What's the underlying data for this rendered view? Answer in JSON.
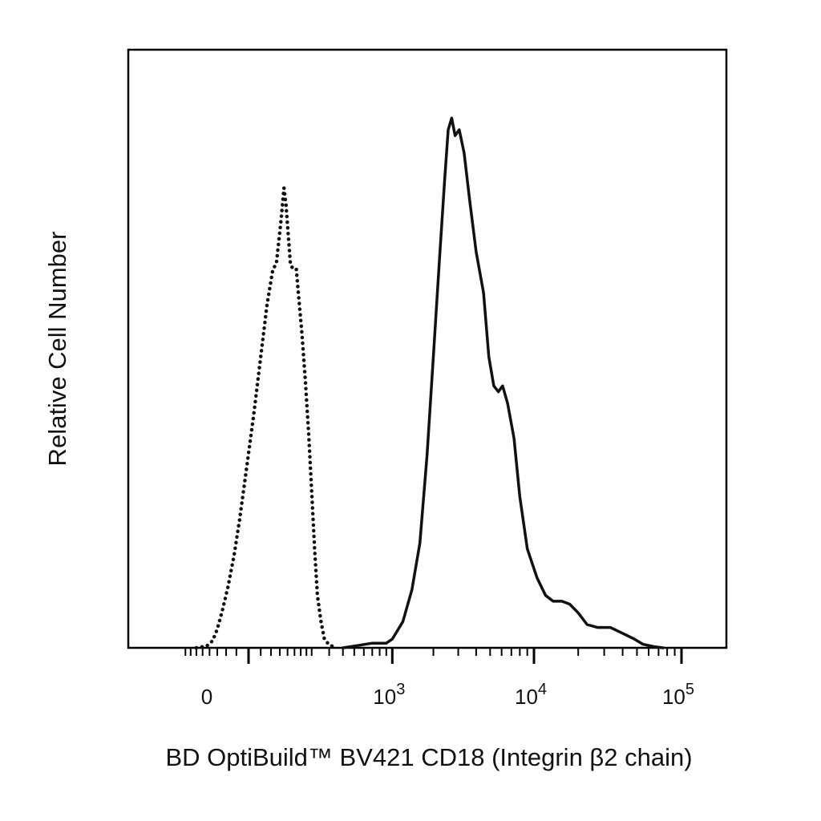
{
  "chart_data": {
    "type": "area",
    "title": "",
    "xlabel": "BD OptiBuild™ BV421 CD18 (Integrin β2 chain)",
    "ylabel": "Relative Cell Number",
    "x_scale": "biexponential",
    "x_ticks": [
      {
        "value": 0,
        "base": "0",
        "exp": ""
      },
      {
        "value": 1000,
        "base": "10",
        "exp": "3"
      },
      {
        "value": 10000,
        "base": "10",
        "exp": "4"
      },
      {
        "value": 100000,
        "base": "10",
        "exp": "5"
      }
    ],
    "ylim": [
      0,
      100
    ],
    "grid": false,
    "legend": "none",
    "series": [
      {
        "style": "dotted",
        "color": "#111111",
        "points": [
          [
            -150,
            0
          ],
          [
            -110,
            0.3
          ],
          [
            -90,
            1.2
          ],
          [
            -75,
            3.2
          ],
          [
            -60,
            6.5
          ],
          [
            -45,
            10.5
          ],
          [
            -30,
            16
          ],
          [
            -18,
            22
          ],
          [
            -5,
            30
          ],
          [
            10,
            40
          ],
          [
            25,
            50
          ],
          [
            40,
            59
          ],
          [
            55,
            65
          ],
          [
            65,
            66
          ],
          [
            78,
            73
          ],
          [
            88,
            79
          ],
          [
            95,
            76
          ],
          [
            110,
            66
          ],
          [
            120,
            65
          ],
          [
            132,
            65
          ],
          [
            140,
            61
          ],
          [
            155,
            54
          ],
          [
            170,
            46
          ],
          [
            185,
            37
          ],
          [
            200,
            27
          ],
          [
            215,
            17
          ],
          [
            230,
            9
          ],
          [
            250,
            4.5
          ],
          [
            270,
            1.5
          ],
          [
            300,
            0.5
          ],
          [
            350,
            0
          ]
        ]
      },
      {
        "style": "solid",
        "color": "#111111",
        "points": [
          [
            400,
            0
          ],
          [
            500,
            0.3
          ],
          [
            700,
            0.8
          ],
          [
            900,
            0.8
          ],
          [
            1000,
            1.5
          ],
          [
            1200,
            4.5
          ],
          [
            1400,
            10
          ],
          [
            1600,
            18
          ],
          [
            1800,
            33
          ],
          [
            2000,
            50
          ],
          [
            2200,
            66
          ],
          [
            2400,
            80
          ],
          [
            2550,
            89
          ],
          [
            2700,
            91
          ],
          [
            2850,
            88
          ],
          [
            3050,
            89
          ],
          [
            3300,
            85
          ],
          [
            3600,
            77
          ],
          [
            4000,
            68
          ],
          [
            4500,
            61
          ],
          [
            4900,
            50
          ],
          [
            5300,
            45
          ],
          [
            5700,
            44
          ],
          [
            6100,
            45
          ],
          [
            6600,
            42
          ],
          [
            7300,
            36
          ],
          [
            8000,
            26
          ],
          [
            9000,
            17
          ],
          [
            10500,
            12
          ],
          [
            12000,
            9
          ],
          [
            13500,
            8
          ],
          [
            15500,
            8
          ],
          [
            17500,
            7.5
          ],
          [
            20000,
            6
          ],
          [
            23000,
            4
          ],
          [
            27000,
            3.5
          ],
          [
            33000,
            3.5
          ],
          [
            40000,
            2.5
          ],
          [
            48000,
            1.5
          ],
          [
            55000,
            0.6
          ],
          [
            65000,
            0.2
          ],
          [
            75000,
            0
          ]
        ]
      }
    ]
  }
}
